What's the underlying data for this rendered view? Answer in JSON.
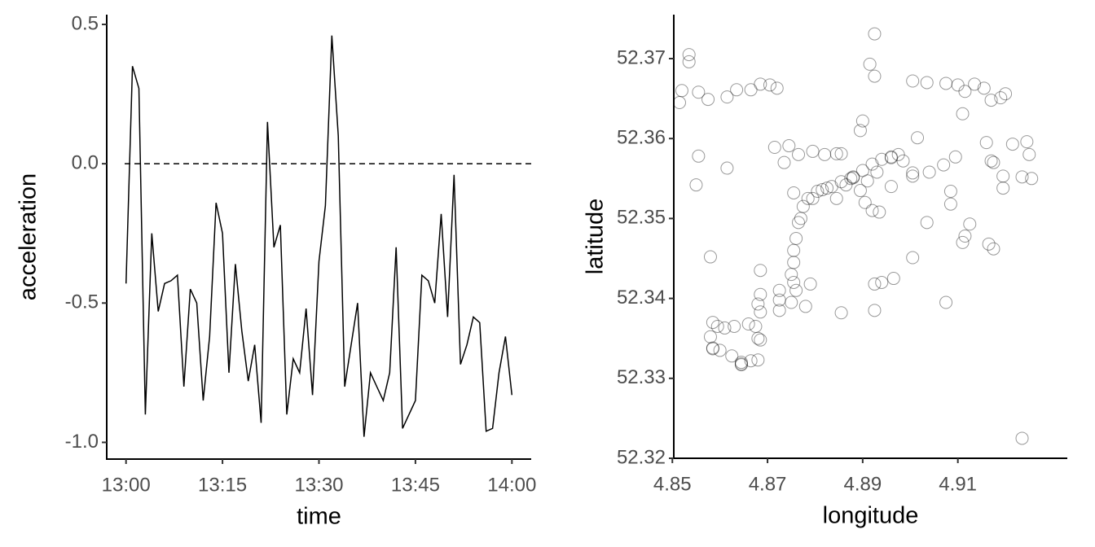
{
  "chart_data": [
    {
      "type": "line",
      "x_label": "time",
      "y_label": "acceleration",
      "color": "#000000",
      "x": [
        "13:00",
        "13:01",
        "13:02",
        "13:03",
        "13:04",
        "13:05",
        "13:06",
        "13:07",
        "13:08",
        "13:09",
        "13:10",
        "13:11",
        "13:12",
        "13:13",
        "13:14",
        "13:15",
        "13:16",
        "13:17",
        "13:18",
        "13:19",
        "13:20",
        "13:21",
        "13:22",
        "13:23",
        "13:24",
        "13:25",
        "13:26",
        "13:27",
        "13:28",
        "13:29",
        "13:30",
        "13:31",
        "13:32",
        "13:33",
        "13:34",
        "13:35",
        "13:36",
        "13:37",
        "13:38",
        "13:39",
        "13:40",
        "13:41",
        "13:42",
        "13:43",
        "13:44",
        "13:45",
        "13:46",
        "13:47",
        "13:48",
        "13:49",
        "13:50",
        "13:51",
        "13:52",
        "13:53",
        "13:54",
        "13:55",
        "13:56",
        "13:57",
        "13:58",
        "13:59",
        "14:00"
      ],
      "values": [
        -0.43,
        0.35,
        0.27,
        -0.9,
        -0.25,
        -0.53,
        -0.43,
        -0.42,
        -0.4,
        -0.8,
        -0.45,
        -0.5,
        -0.85,
        -0.62,
        -0.14,
        -0.25,
        -0.75,
        -0.36,
        -0.6,
        -0.78,
        -0.65,
        -0.93,
        0.15,
        -0.3,
        -0.22,
        -0.9,
        -0.7,
        -0.75,
        -0.52,
        -0.83,
        -0.35,
        -0.15,
        0.46,
        0.1,
        -0.8,
        -0.65,
        -0.5,
        -0.98,
        -0.75,
        -0.8,
        -0.85,
        -0.75,
        -0.3,
        -0.95,
        -0.9,
        -0.85,
        -0.4,
        -0.42,
        -0.5,
        -0.18,
        -0.55,
        -0.04,
        -0.72,
        -0.65,
        -0.55,
        -0.57,
        -0.96,
        -0.95,
        -0.75,
        -0.62,
        -0.83
      ],
      "xlim": [
        "12:57",
        "14:03"
      ],
      "xticks": [
        "13:00",
        "13:15",
        "13:30",
        "13:45",
        "14:00"
      ],
      "ylim": [
        -1.06,
        0.535
      ],
      "yticks": [
        0.5,
        {
          "value": 0,
          "label": "0.0"
        },
        -0.5,
        {
          "value": -1,
          "label": "-1.0"
        }
      ],
      "hline": 0
    },
    {
      "type": "scatter",
      "x_label": "longitude",
      "y_label": "latitude",
      "color": "#000000",
      "x": [
        4.8535,
        4.8535,
        4.852,
        4.8515,
        4.8555,
        4.8575,
        4.8615,
        4.8635,
        4.8665,
        4.8685,
        4.8705,
        4.872,
        4.8555,
        4.855,
        4.8615,
        4.8715,
        4.8745,
        4.8765,
        4.8795,
        4.882,
        4.8845,
        4.8735,
        4.8925,
        4.8915,
        4.8925,
        4.9005,
        4.9035,
        4.9075,
        4.91,
        4.9115,
        4.9135,
        4.9155,
        4.917,
        4.919,
        4.92,
        4.911,
        4.89,
        4.8895,
        4.8805,
        4.8815,
        4.8835,
        4.8855,
        4.8875,
        4.888,
        4.89,
        4.892,
        4.894,
        4.896,
        4.8975,
        4.8985,
        4.893,
        4.891,
        4.8895,
        4.8905,
        4.892,
        4.8935,
        4.896,
        4.8965,
        4.8925,
        4.894,
        4.8925,
        4.8855,
        4.879,
        4.8785,
        4.8775,
        4.877,
        4.8765,
        4.876,
        4.8755,
        4.8755,
        4.875,
        4.8755,
        4.876,
        4.8725,
        4.8725,
        4.8725,
        4.875,
        4.878,
        4.8685,
        4.8685,
        4.868,
        4.8685,
        4.8675,
        4.868,
        4.8685,
        4.866,
        4.863,
        4.861,
        4.8595,
        4.858,
        4.8585,
        4.858,
        4.8585,
        4.86,
        4.8625,
        4.8645,
        4.8665,
        4.868,
        4.8645,
        4.9015,
        4.9005,
        4.9005,
        4.904,
        4.907,
        4.9095,
        4.916,
        4.917,
        4.9175,
        4.9215,
        4.9245,
        4.925,
        4.9195,
        4.9195,
        4.9235,
        4.9255,
        4.9085,
        4.9085,
        4.9035,
        4.9125,
        4.9115,
        4.911,
        4.9165,
        4.9175,
        4.9005,
        4.9075,
        4.9235,
        4.8865,
        4.8845,
        4.8825,
        4.8795,
        4.8755,
        4.8855,
        4.888,
        4.896,
        4.8585,
        4.8645
      ],
      "values": [
        52.3705,
        52.3696,
        52.366,
        52.3645,
        52.3658,
        52.3649,
        52.3652,
        52.3661,
        52.3661,
        52.3668,
        52.3667,
        52.3663,
        52.3578,
        52.3542,
        52.3563,
        52.3589,
        52.3591,
        52.358,
        52.3584,
        52.358,
        52.3581,
        52.357,
        52.3731,
        52.3693,
        52.3678,
        52.3672,
        52.367,
        52.3669,
        52.3667,
        52.3659,
        52.3668,
        52.3663,
        52.3648,
        52.3651,
        52.3656,
        52.3631,
        52.3622,
        52.361,
        52.3534,
        52.3536,
        52.354,
        52.3546,
        52.355,
        52.3552,
        52.356,
        52.3568,
        52.3574,
        52.3576,
        52.358,
        52.3572,
        52.3558,
        52.3547,
        52.3535,
        52.352,
        52.351,
        52.3508,
        52.354,
        52.3425,
        52.3418,
        52.342,
        52.3385,
        52.3382,
        52.3418,
        52.3525,
        52.3515,
        52.35,
        52.3495,
        52.3475,
        52.346,
        52.3445,
        52.343,
        52.342,
        52.341,
        52.341,
        52.3398,
        52.3385,
        52.3395,
        52.339,
        52.3435,
        52.3405,
        52.3393,
        52.3383,
        52.3365,
        52.335,
        52.3348,
        52.3368,
        52.3365,
        52.3363,
        52.3365,
        52.3352,
        52.337,
        52.3452,
        52.3338,
        52.3335,
        52.3328,
        52.3318,
        52.3322,
        52.3323,
        52.332,
        52.3601,
        52.3553,
        52.3557,
        52.3558,
        52.3567,
        52.3577,
        52.3595,
        52.3572,
        52.357,
        52.3593,
        52.3596,
        52.358,
        52.3553,
        52.3538,
        52.3552,
        52.355,
        52.3534,
        52.3518,
        52.3495,
        52.3493,
        52.3478,
        52.347,
        52.3468,
        52.3462,
        52.3451,
        52.3395,
        52.3225,
        52.3542,
        52.3525,
        52.3538,
        52.3525,
        52.3532,
        52.3581,
        52.3551,
        52.3577,
        52.3337,
        52.3317
      ],
      "xlim": [
        4.8503,
        4.933
      ],
      "xticks": [
        4.85,
        4.87,
        4.89,
        4.91
      ],
      "ylim": [
        52.32,
        52.3755
      ],
      "yticks": [
        52.32,
        52.33,
        52.34,
        52.35,
        52.36,
        52.37
      ]
    }
  ]
}
